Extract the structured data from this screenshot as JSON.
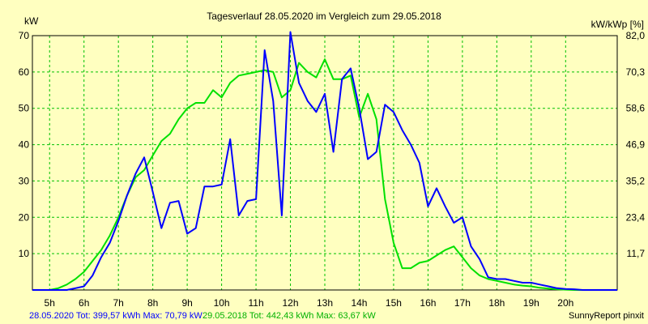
{
  "chart_data": {
    "type": "line",
    "title": "Tagesverlauf 28.05.2020 im Vergleich zum 29.05.2018",
    "ylabel_left": "kW",
    "ylabel_right": "kW/kWp [%]",
    "xlabel": "",
    "x_ticks": [
      "5h",
      "6h",
      "7h",
      "8h",
      "9h",
      "10h",
      "11h",
      "12h",
      "13h",
      "14h",
      "15h",
      "16h",
      "17h",
      "18h",
      "19h",
      "20h"
    ],
    "xlim": [
      4.5,
      21.5
    ],
    "ylim": [
      0,
      70
    ],
    "y_ticks_left": [
      "10",
      "20",
      "30",
      "40",
      "50",
      "60",
      "70"
    ],
    "y_ticks_right": [
      "11,7",
      "23,4",
      "35,2",
      "46,9",
      "58,6",
      "70,3",
      "82,0"
    ],
    "grid": true,
    "colors": {
      "background": "#ffffc0",
      "grid": "#00c000",
      "axis": "#000000"
    },
    "series": [
      {
        "name": "28.05.2020",
        "color": "#0000ff",
        "x": [
          4.5,
          5.0,
          5.25,
          5.5,
          5.75,
          6.0,
          6.25,
          6.5,
          6.75,
          7.0,
          7.25,
          7.5,
          7.75,
          8.0,
          8.25,
          8.5,
          8.75,
          9.0,
          9.25,
          9.5,
          9.75,
          10.0,
          10.25,
          10.5,
          10.75,
          11.0,
          11.25,
          11.5,
          11.75,
          12.0,
          12.25,
          12.5,
          12.75,
          13.0,
          13.25,
          13.5,
          13.75,
          14.0,
          14.25,
          14.5,
          14.75,
          15.0,
          15.25,
          15.5,
          15.75,
          16.0,
          16.25,
          16.5,
          16.75,
          17.0,
          17.25,
          17.5,
          17.75,
          18.0,
          18.25,
          18.5,
          18.75,
          19.0,
          19.25,
          19.5,
          19.75,
          20.0,
          20.25,
          20.5,
          20.75,
          21.0,
          21.5
        ],
        "values": [
          0,
          0,
          0,
          0,
          0.5,
          1,
          4,
          9,
          13,
          19,
          26,
          32,
          36.5,
          27,
          17,
          24,
          24.5,
          15.5,
          17,
          28.5,
          28.5,
          29,
          41.5,
          20.5,
          24.5,
          25,
          66,
          52,
          20.5,
          71,
          57,
          52,
          49,
          54,
          38,
          58,
          61,
          50,
          36,
          38,
          51,
          49,
          44,
          40,
          35,
          23,
          28,
          23,
          18.5,
          20,
          12,
          8.5,
          3.5,
          3,
          3,
          2.5,
          2,
          2,
          1.5,
          1,
          0.5,
          0.3,
          0.2,
          0,
          0,
          0,
          0
        ]
      },
      {
        "name": "29.05.2018",
        "color": "#00e000",
        "x": [
          4.5,
          4.75,
          5.0,
          5.25,
          5.5,
          5.75,
          6.0,
          6.25,
          6.5,
          6.75,
          7.0,
          7.25,
          7.5,
          7.75,
          8.0,
          8.25,
          8.5,
          8.75,
          9.0,
          9.25,
          9.5,
          9.75,
          10.0,
          10.25,
          10.5,
          10.75,
          11.0,
          11.25,
          11.5,
          11.75,
          12.0,
          12.25,
          12.5,
          12.75,
          13.0,
          13.25,
          13.5,
          13.75,
          14.0,
          14.25,
          14.5,
          14.75,
          15.0,
          15.25,
          15.5,
          15.75,
          16.0,
          16.25,
          16.5,
          16.75,
          17.0,
          17.25,
          17.5,
          17.75,
          18.0,
          18.25,
          18.5,
          18.75,
          19.0,
          19.25,
          19.5,
          19.75,
          20.0,
          20.25,
          20.5,
          20.75,
          21.0,
          21.5
        ],
        "values": [
          0,
          0,
          0,
          0.5,
          1.5,
          3,
          5,
          8,
          11,
          15,
          20,
          26,
          31,
          33,
          37,
          41,
          43,
          47,
          50,
          51.5,
          51.5,
          55,
          53,
          57,
          59,
          59.5,
          60,
          60.5,
          60,
          53,
          55,
          62.5,
          60,
          58.5,
          63.5,
          58,
          58,
          59,
          47.5,
          54,
          47,
          25,
          13,
          6,
          6,
          7.5,
          8,
          9.5,
          11,
          12,
          9,
          6,
          4,
          3,
          2.5,
          2,
          1.5,
          1.2,
          1,
          0.6,
          0.4,
          0.2,
          0.1,
          0,
          0,
          0,
          0,
          0
        ]
      }
    ]
  },
  "footer": {
    "left_line_a": "28.05.2020 Tot: 399,57 kWh Max: 70,79 kW",
    "left_line_b": "29.05.2018 Tot: 442,43 kWh Max: 63,67 kW",
    "right_text": "SunnyReport pinxit"
  }
}
